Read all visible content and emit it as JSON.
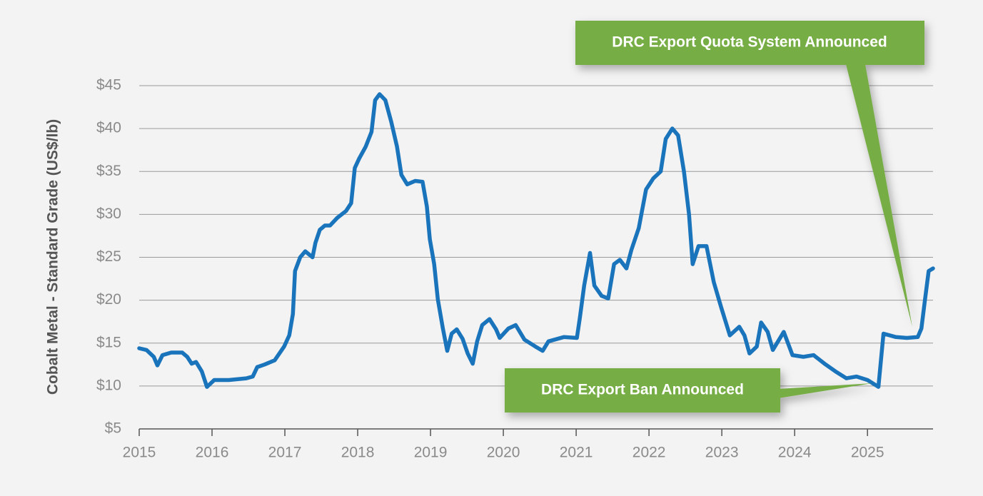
{
  "chart_data": {
    "type": "line",
    "y_label": "Cobalt Metal - Standard Grade (US$/lb)",
    "xlim": [
      2015,
      2025.9
    ],
    "xticks": [
      2015,
      2016,
      2017,
      2018,
      2019,
      2020,
      2021,
      2022,
      2023,
      2024,
      2025
    ],
    "ylim": [
      5,
      45
    ],
    "yticks": [
      {
        "value": 5,
        "label": "$5"
      },
      {
        "value": 10,
        "label": "$10"
      },
      {
        "value": 15,
        "label": "$15"
      },
      {
        "value": 20,
        "label": "$20"
      },
      {
        "value": 25,
        "label": "$25"
      },
      {
        "value": 30,
        "label": "$30"
      },
      {
        "value": 35,
        "label": "$35"
      },
      {
        "value": 40,
        "label": "$40"
      },
      {
        "value": 45,
        "label": "$45"
      }
    ],
    "grid": true,
    "series": [
      {
        "color": "#1a74bb",
        "x": [
          2015.0,
          2015.1,
          2015.2,
          2015.25,
          2015.32,
          2015.44,
          2015.59,
          2015.66,
          2015.72,
          2015.78,
          2015.86,
          2015.93,
          2016.03,
          2016.23,
          2016.47,
          2016.56,
          2016.62,
          2016.72,
          2016.86,
          2016.99,
          2017.06,
          2017.11,
          2017.14,
          2017.21,
          2017.28,
          2017.38,
          2017.42,
          2017.48,
          2017.55,
          2017.62,
          2017.72,
          2017.84,
          2017.91,
          2017.96,
          2018.02,
          2018.11,
          2018.19,
          2018.24,
          2018.3,
          2018.38,
          2018.46,
          2018.54,
          2018.6,
          2018.68,
          2018.79,
          2018.89,
          2018.95,
          2018.99,
          2019.05,
          2019.1,
          2019.17,
          2019.23,
          2019.29,
          2019.36,
          2019.44,
          2019.51,
          2019.58,
          2019.64,
          2019.71,
          2019.81,
          2019.9,
          2019.95,
          2020.07,
          2020.17,
          2020.29,
          2020.44,
          2020.54,
          2020.62,
          2020.83,
          2021.01,
          2021.05,
          2021.11,
          2021.19,
          2021.25,
          2021.35,
          2021.44,
          2021.52,
          2021.6,
          2021.69,
          2021.76,
          2021.86,
          2021.96,
          2022.06,
          2022.16,
          2022.23,
          2022.32,
          2022.4,
          2022.48,
          2022.55,
          2022.6,
          2022.68,
          2022.79,
          2022.89,
          2022.99,
          2023.11,
          2023.24,
          2023.31,
          2023.38,
          2023.48,
          2023.54,
          2023.63,
          2023.7,
          2023.85,
          2023.97,
          2024.12,
          2024.26,
          2024.41,
          2024.56,
          2024.71,
          2024.85,
          2025.0,
          2025.15,
          2025.22,
          2025.39,
          2025.54,
          2025.69,
          2025.74,
          2025.79,
          2025.84,
          2025.9
        ],
        "values": [
          14.4,
          14.2,
          13.4,
          12.4,
          13.6,
          13.9,
          13.9,
          13.4,
          12.6,
          12.8,
          11.7,
          9.9,
          10.7,
          10.7,
          10.9,
          11.1,
          12.2,
          12.5,
          13.0,
          14.6,
          15.9,
          18.4,
          23.4,
          25.0,
          25.7,
          25.0,
          26.7,
          28.2,
          28.7,
          28.7,
          29.6,
          30.4,
          31.3,
          35.4,
          36.5,
          37.9,
          39.6,
          43.3,
          44.0,
          43.3,
          40.8,
          37.9,
          34.6,
          33.5,
          33.9,
          33.8,
          30.9,
          27.1,
          24.2,
          20.1,
          16.7,
          14.1,
          16.1,
          16.6,
          15.5,
          13.8,
          12.6,
          15.2,
          17.1,
          17.8,
          16.6,
          15.6,
          16.7,
          17.1,
          15.4,
          14.6,
          14.1,
          15.2,
          15.7,
          15.6,
          17.9,
          21.7,
          25.5,
          21.7,
          20.5,
          20.2,
          24.2,
          24.7,
          23.7,
          25.9,
          28.4,
          32.9,
          34.2,
          35.0,
          38.8,
          40.0,
          39.2,
          35.0,
          30.0,
          24.2,
          26.3,
          26.3,
          22.1,
          19.2,
          15.9,
          16.9,
          15.9,
          13.8,
          14.6,
          17.4,
          16.3,
          14.2,
          16.3,
          13.6,
          13.4,
          13.6,
          12.6,
          11.7,
          10.9,
          11.1,
          10.7,
          9.9,
          16.1,
          15.7,
          15.6,
          15.7,
          16.7,
          20.1,
          23.4,
          23.7
        ]
      }
    ],
    "annotations": [
      {
        "text": "DRC Export Quota System Announced"
      },
      {
        "text": "DRC Export Ban Announced"
      }
    ]
  }
}
